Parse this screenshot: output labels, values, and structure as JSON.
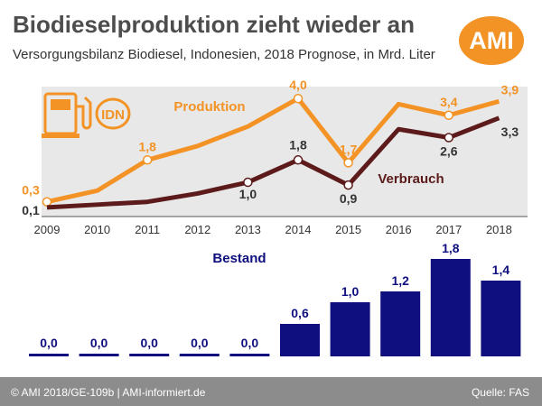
{
  "header": {
    "title": "Biodieselproduktion zieht wieder an",
    "subtitle": "Versorgungsbilanz Biodiesel, Indonesien, 2018 Prognose, in Mrd. Liter",
    "logo_text": "AMI"
  },
  "footer": {
    "left": "© AMI 2018/GE-109b | AMI-informiert.de",
    "right": "Quelle: FAS"
  },
  "badge": {
    "text": "IDN",
    "icon": "fuel-pump-icon"
  },
  "colors": {
    "production": "#f39325",
    "consumption": "#5c1a1a",
    "stock": "#0f0f7f",
    "panel": "#e8e8e8",
    "axis": "#555555"
  },
  "chart_data": [
    {
      "type": "line",
      "x": [
        "2009",
        "2010",
        "2011",
        "2012",
        "2013",
        "2014",
        "2015",
        "2016",
        "2017",
        "2018"
      ],
      "ylim": [
        0,
        4.2
      ],
      "grid": false,
      "series": [
        {
          "name": "Produktion",
          "values": [
            0.3,
            0.7,
            1.8,
            2.3,
            3.0,
            4.0,
            1.7,
            3.8,
            3.4,
            3.9
          ],
          "labels": [
            "0,3",
            "",
            "1,8",
            "",
            "",
            "4,0",
            "1,7",
            "",
            "3,4",
            "3,9"
          ],
          "markers": [
            true,
            false,
            true,
            false,
            false,
            true,
            true,
            false,
            true,
            false
          ]
        },
        {
          "name": "Verbrauch",
          "values": [
            0.1,
            0.2,
            0.3,
            0.6,
            1.0,
            1.8,
            0.9,
            2.9,
            2.6,
            3.3
          ],
          "labels": [
            "0,1",
            "",
            "",
            "",
            "1,0",
            "1,8",
            "0,9",
            "",
            "2,6",
            "3,3"
          ],
          "markers": [
            false,
            false,
            false,
            false,
            true,
            true,
            true,
            false,
            true,
            false
          ]
        }
      ]
    },
    {
      "type": "bar",
      "title": "Bestand",
      "categories": [
        "2009",
        "2010",
        "2011",
        "2012",
        "2013",
        "2014",
        "2015",
        "2016",
        "2017",
        "2018"
      ],
      "values": [
        0.0,
        0.0,
        0.0,
        0.0,
        0.0,
        0.6,
        1.0,
        1.2,
        1.8,
        1.4
      ],
      "labels": [
        "0,0",
        "0,0",
        "0,0",
        "0,0",
        "0,0",
        "0,6",
        "1,0",
        "1,2",
        "1,8",
        "1,4"
      ],
      "ylim": [
        0,
        1.8
      ]
    }
  ]
}
